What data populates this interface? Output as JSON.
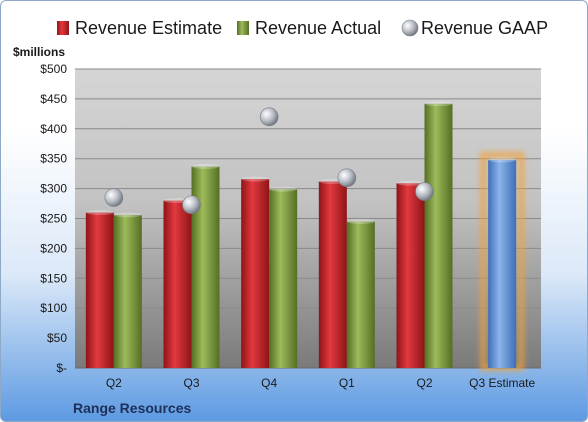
{
  "chart_data": {
    "type": "bar",
    "title": "",
    "unit_label": "$millions",
    "company": "Range Resources",
    "categories": [
      "Q2",
      "Q3",
      "Q4",
      "Q1",
      "Q2",
      "Q3 Estimate"
    ],
    "ylim": [
      0,
      500
    ],
    "ytick_step": 50,
    "ytick_labels": [
      "$-",
      "$50",
      "$100",
      "$150",
      "$200",
      "$250",
      "$300",
      "$350",
      "$400",
      "$450",
      "$500"
    ],
    "grid": true,
    "legend_position": "top",
    "series": [
      {
        "name": "Revenue Estimate",
        "kind": "bar",
        "color": "#c0262b",
        "values": [
          260,
          280,
          316,
          312,
          309,
          null
        ]
      },
      {
        "name": "Revenue Actual",
        "kind": "bar",
        "color": "#7c9a3f",
        "values": [
          256,
          337,
          299,
          245,
          442,
          null
        ]
      },
      {
        "name": "Revenue GAAP",
        "kind": "marker",
        "color": "#b7bcc4",
        "values": [
          285,
          273,
          420,
          318,
          295,
          null
        ]
      },
      {
        "name": "",
        "kind": "bar",
        "color": "#5b8fd4",
        "highlight_color": "#f2a23a",
        "values": [
          null,
          null,
          null,
          null,
          null,
          348
        ]
      }
    ]
  }
}
